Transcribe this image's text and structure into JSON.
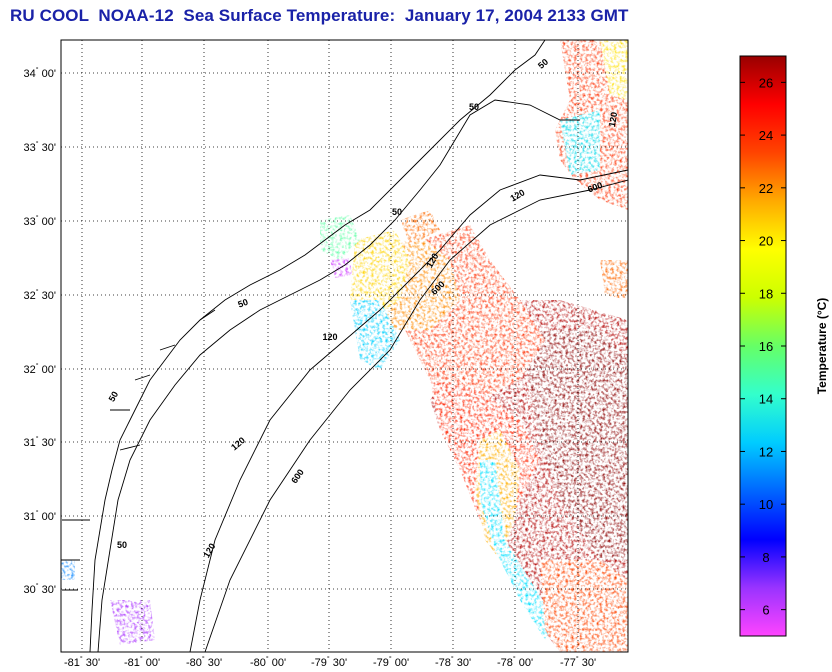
{
  "title": "RU COOL  NOAA-12  Sea Surface Temperature:  January 17, 2004 2133 GMT",
  "map": {
    "lat_ticks": [
      {
        "deg": "34",
        "min": "00'"
      },
      {
        "deg": "33",
        "min": "30'"
      },
      {
        "deg": "33",
        "min": "00'"
      },
      {
        "deg": "32",
        "min": "30'"
      },
      {
        "deg": "32",
        "min": "00'"
      },
      {
        "deg": "31",
        "min": "30'"
      },
      {
        "deg": "31",
        "min": "00'"
      },
      {
        "deg": "30",
        "min": "30'"
      }
    ],
    "lon_ticks": [
      {
        "deg": "-81",
        "min": "30'"
      },
      {
        "deg": "-81",
        "min": "00'"
      },
      {
        "deg": "-80",
        "min": "30'"
      },
      {
        "deg": "-80",
        "min": "00'"
      },
      {
        "deg": "-79",
        "min": "30'"
      },
      {
        "deg": "-79",
        "min": "00'"
      },
      {
        "deg": "-78",
        "min": "30'"
      },
      {
        "deg": "-78",
        "min": "00'"
      },
      {
        "deg": "-77",
        "min": "30'"
      }
    ],
    "contour_labels": [
      "50",
      "50",
      "50",
      "50",
      "50",
      "50",
      "120",
      "120",
      "120",
      "120",
      "120",
      "120",
      "600",
      "600",
      "600"
    ]
  },
  "colorbar": {
    "label": "Temperature (°C)",
    "ticks": [
      "26",
      "24",
      "22",
      "20",
      "18",
      "16",
      "14",
      "12",
      "10",
      "8",
      "6"
    ],
    "range": [
      5,
      27
    ],
    "colors": [
      "#ff44ff",
      "#9933ff",
      "#0000ff",
      "#0066ff",
      "#00ccff",
      "#33ffcc",
      "#66ff66",
      "#ccff00",
      "#ffff00",
      "#ffaa00",
      "#ff4400",
      "#ff0000",
      "#990000"
    ]
  }
}
